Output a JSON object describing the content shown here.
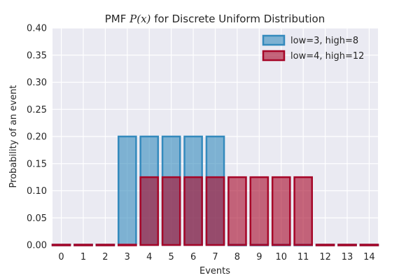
{
  "chart_data": {
    "type": "bar",
    "title_prefix": "PMF ",
    "title_math": "P(x)",
    "title_suffix": " for Discrete Uniform Distribution",
    "xlabel": "Events",
    "ylabel": "Probability of an event",
    "ylim": [
      0,
      0.4
    ],
    "yticks": [
      "0.00",
      "0.05",
      "0.10",
      "0.15",
      "0.20",
      "0.25",
      "0.30",
      "0.35",
      "0.40"
    ],
    "categories": [
      "0",
      "1",
      "2",
      "3",
      "4",
      "5",
      "6",
      "7",
      "8",
      "9",
      "10",
      "11",
      "12",
      "13",
      "14"
    ],
    "grid": true,
    "legend_position": "top-right",
    "series": [
      {
        "name": "low=3, high=8",
        "color": "#348ABD",
        "values": [
          0,
          0,
          0,
          0.2,
          0.2,
          0.2,
          0.2,
          0.2,
          0,
          0,
          0,
          0,
          0,
          0,
          0
        ]
      },
      {
        "name": "low=4, high=12",
        "color": "#A60628",
        "values": [
          0,
          0,
          0,
          0,
          0.125,
          0.125,
          0.125,
          0.125,
          0.125,
          0.125,
          0.125,
          0.125,
          0,
          0,
          0
        ]
      }
    ]
  }
}
